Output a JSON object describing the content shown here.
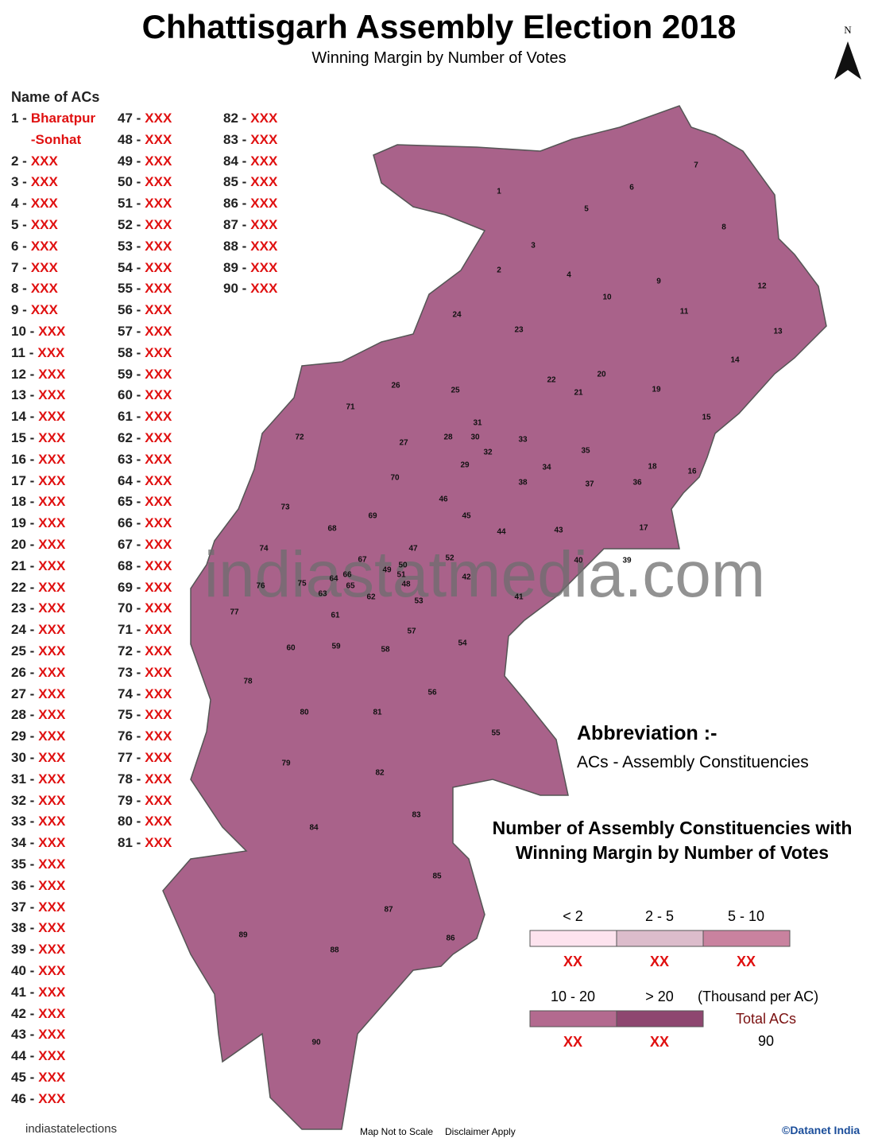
{
  "header": {
    "title": "Chhattisgarh Assembly Election 2018",
    "subtitle": "Winning Margin by Number of Votes",
    "north": "N"
  },
  "ac_list": {
    "heading": "Name of ACs",
    "items": [
      {
        "no": "1 -",
        "name": "Bharatpur -Sonhat"
      },
      {
        "no": "2 -",
        "name": "XXX"
      },
      {
        "no": "3 -",
        "name": "XXX"
      },
      {
        "no": "4 -",
        "name": "XXX"
      },
      {
        "no": "5 -",
        "name": "XXX"
      },
      {
        "no": "6 -",
        "name": "XXX"
      },
      {
        "no": "7 -",
        "name": "XXX"
      },
      {
        "no": "8 -",
        "name": "XXX"
      },
      {
        "no": "9 -",
        "name": "XXX"
      },
      {
        "no": "10 -",
        "name": "XXX"
      },
      {
        "no": "11 -",
        "name": "XXX"
      },
      {
        "no": "12 -",
        "name": "XXX"
      },
      {
        "no": "13 -",
        "name": "XXX"
      },
      {
        "no": "14 -",
        "name": "XXX"
      },
      {
        "no": "15 -",
        "name": "XXX"
      },
      {
        "no": "16 -",
        "name": "XXX"
      },
      {
        "no": "17 -",
        "name": "XXX"
      },
      {
        "no": "18 -",
        "name": "XXX"
      },
      {
        "no": "19 -",
        "name": "XXX"
      },
      {
        "no": "20 -",
        "name": "XXX"
      },
      {
        "no": "21 -",
        "name": "XXX"
      },
      {
        "no": "22 -",
        "name": "XXX"
      },
      {
        "no": "23 -",
        "name": "XXX"
      },
      {
        "no": "24 -",
        "name": "XXX"
      },
      {
        "no": "25 -",
        "name": "XXX"
      },
      {
        "no": "26 -",
        "name": "XXX"
      },
      {
        "no": "27 -",
        "name": "XXX"
      },
      {
        "no": "28 -",
        "name": "XXX"
      },
      {
        "no": "29 -",
        "name": "XXX"
      },
      {
        "no": "30 -",
        "name": "XXX"
      },
      {
        "no": "31 -",
        "name": "XXX"
      },
      {
        "no": "32 -",
        "name": "XXX"
      },
      {
        "no": "33 -",
        "name": "XXX"
      },
      {
        "no": "34 -",
        "name": "XXX"
      },
      {
        "no": "35 -",
        "name": "XXX"
      },
      {
        "no": "36 -",
        "name": "XXX"
      },
      {
        "no": "37 -",
        "name": "XXX"
      },
      {
        "no": "38 -",
        "name": "XXX"
      },
      {
        "no": "39 -",
        "name": "XXX"
      },
      {
        "no": "40 -",
        "name": "XXX"
      },
      {
        "no": "41 -",
        "name": "XXX"
      },
      {
        "no": "42 -",
        "name": "XXX"
      },
      {
        "no": "43 -",
        "name": "XXX"
      },
      {
        "no": "44 -",
        "name": "XXX"
      },
      {
        "no": "45 -",
        "name": "XXX"
      },
      {
        "no": "46 -",
        "name": "XXX"
      },
      {
        "no": "47 -",
        "name": "XXX"
      },
      {
        "no": "48 -",
        "name": "XXX"
      },
      {
        "no": "49 -",
        "name": "XXX"
      },
      {
        "no": "50 -",
        "name": "XXX"
      },
      {
        "no": "51 -",
        "name": "XXX"
      },
      {
        "no": "52 -",
        "name": "XXX"
      },
      {
        "no": "53 -",
        "name": "XXX"
      },
      {
        "no": "54 -",
        "name": "XXX"
      },
      {
        "no": "55 -",
        "name": "XXX"
      },
      {
        "no": "56 -",
        "name": "XXX"
      },
      {
        "no": "57 -",
        "name": "XXX"
      },
      {
        "no": "58 -",
        "name": "XXX"
      },
      {
        "no": "59 -",
        "name": "XXX"
      },
      {
        "no": "60 -",
        "name": "XXX"
      },
      {
        "no": "61 -",
        "name": "XXX"
      },
      {
        "no": "62 -",
        "name": "XXX"
      },
      {
        "no": "63 -",
        "name": "XXX"
      },
      {
        "no": "64 -",
        "name": "XXX"
      },
      {
        "no": "65 -",
        "name": "XXX"
      },
      {
        "no": "66 -",
        "name": "XXX"
      },
      {
        "no": "67 -",
        "name": "XXX"
      },
      {
        "no": "68 -",
        "name": "XXX"
      },
      {
        "no": "69 -",
        "name": "XXX"
      },
      {
        "no": "70 -",
        "name": "XXX"
      },
      {
        "no": "71 -",
        "name": "XXX"
      },
      {
        "no": "72 -",
        "name": "XXX"
      },
      {
        "no": "73 -",
        "name": "XXX"
      },
      {
        "no": "74 -",
        "name": "XXX"
      },
      {
        "no": "75 -",
        "name": "XXX"
      },
      {
        "no": "76 -",
        "name": "XXX"
      },
      {
        "no": "77 -",
        "name": "XXX"
      },
      {
        "no": "78 -",
        "name": "XXX"
      },
      {
        "no": "79 -",
        "name": "XXX"
      },
      {
        "no": "80 -",
        "name": "XXX"
      },
      {
        "no": "81 -",
        "name": "XXX"
      },
      {
        "no": "82 -",
        "name": "XXX"
      },
      {
        "no": "83 -",
        "name": "XXX"
      },
      {
        "no": "84 -",
        "name": "XXX"
      },
      {
        "no": "85 -",
        "name": "XXX"
      },
      {
        "no": "86 -",
        "name": "XXX"
      },
      {
        "no": "87 -",
        "name": "XXX"
      },
      {
        "no": "88 -",
        "name": "XXX"
      },
      {
        "no": "89 -",
        "name": "XXX"
      },
      {
        "no": "90 -",
        "name": "XXX"
      }
    ]
  },
  "map": {
    "labels": [
      "1",
      "2",
      "3",
      "4",
      "5",
      "6",
      "7",
      "8",
      "9",
      "10",
      "11",
      "12",
      "13",
      "14",
      "15",
      "16",
      "17",
      "18",
      "19",
      "20",
      "21",
      "22",
      "23",
      "24",
      "25",
      "26",
      "27",
      "28",
      "29",
      "30",
      "31",
      "32",
      "33",
      "34",
      "35",
      "36",
      "37",
      "38",
      "39",
      "40",
      "41",
      "42",
      "43",
      "44",
      "45",
      "46",
      "47",
      "48",
      "49",
      "50",
      "51",
      "52",
      "53",
      "54",
      "55",
      "56",
      "57",
      "58",
      "59",
      "60",
      "61",
      "62",
      "63",
      "64",
      "65",
      "66",
      "67",
      "68",
      "69",
      "70",
      "71",
      "72",
      "73",
      "74",
      "75",
      "76",
      "77",
      "78",
      "79",
      "80",
      "81",
      "82",
      "83",
      "84",
      "85",
      "86",
      "87",
      "88",
      "89",
      "90"
    ],
    "watermark": "indiastatmedia.com"
  },
  "abbreviation": {
    "heading": "Abbreviation :-",
    "text": "ACs - Assembly Constituencies"
  },
  "legend": {
    "title": "Number of Assembly Constituencies with Winning Margin by Number of Votes",
    "classes": [
      {
        "label": "< 2",
        "count": "XX",
        "color": "#fde3ee"
      },
      {
        "label": "2 - 5",
        "count": "XX",
        "color": "#dcbccb"
      },
      {
        "label": "5 - 10",
        "count": "XX",
        "color": "#c9829f"
      },
      {
        "label": "10 - 20",
        "count": "XX",
        "color": "#b36a8f"
      },
      {
        "label": "> 20",
        "count": "XX",
        "color": "#8e4770"
      }
    ],
    "unit": "(Thousand per AC)",
    "total_label": "Total ACs",
    "total": 90
  },
  "footer": {
    "brand": "indiastatelections",
    "note1": "Map Not to Scale",
    "note2": "Disclaimer Apply",
    "credit": "©Datanet India"
  }
}
